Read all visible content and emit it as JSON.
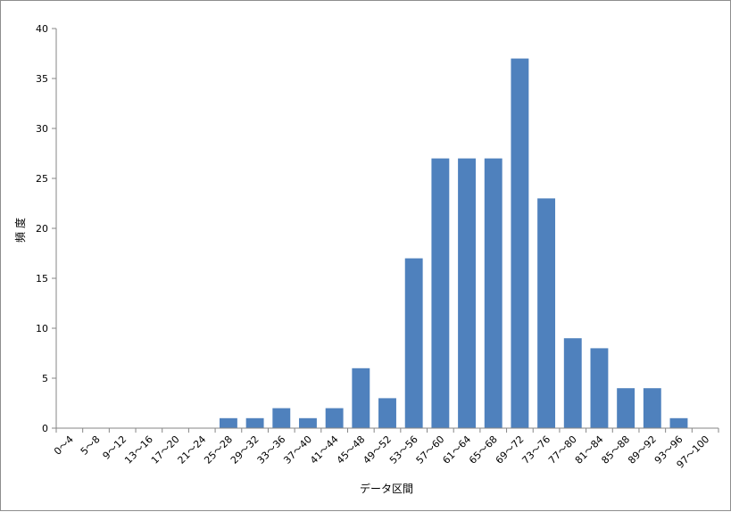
{
  "chart_data": {
    "type": "bar",
    "title": "",
    "xlabel": "データ区間",
    "ylabel": "頻度",
    "ylim": [
      0,
      40
    ],
    "yticks": [
      0,
      5,
      10,
      15,
      20,
      25,
      30,
      35,
      40
    ],
    "grid": false,
    "legend": "none",
    "bar_color": "#4f81bd",
    "categories": [
      "0～4",
      "5～8",
      "9～12",
      "13～16",
      "17～20",
      "21～24",
      "25～28",
      "29～32",
      "33～36",
      "37～40",
      "41～44",
      "45～48",
      "49～52",
      "53～56",
      "57～60",
      "61～64",
      "65～68",
      "69～72",
      "73～76",
      "77～80",
      "81～84",
      "85～88",
      "89～92",
      "93～96",
      "97～100"
    ],
    "values": [
      0,
      0,
      0,
      0,
      0,
      0,
      1,
      1,
      2,
      1,
      2,
      6,
      3,
      17,
      27,
      27,
      27,
      37,
      23,
      9,
      8,
      4,
      4,
      1,
      0
    ]
  }
}
